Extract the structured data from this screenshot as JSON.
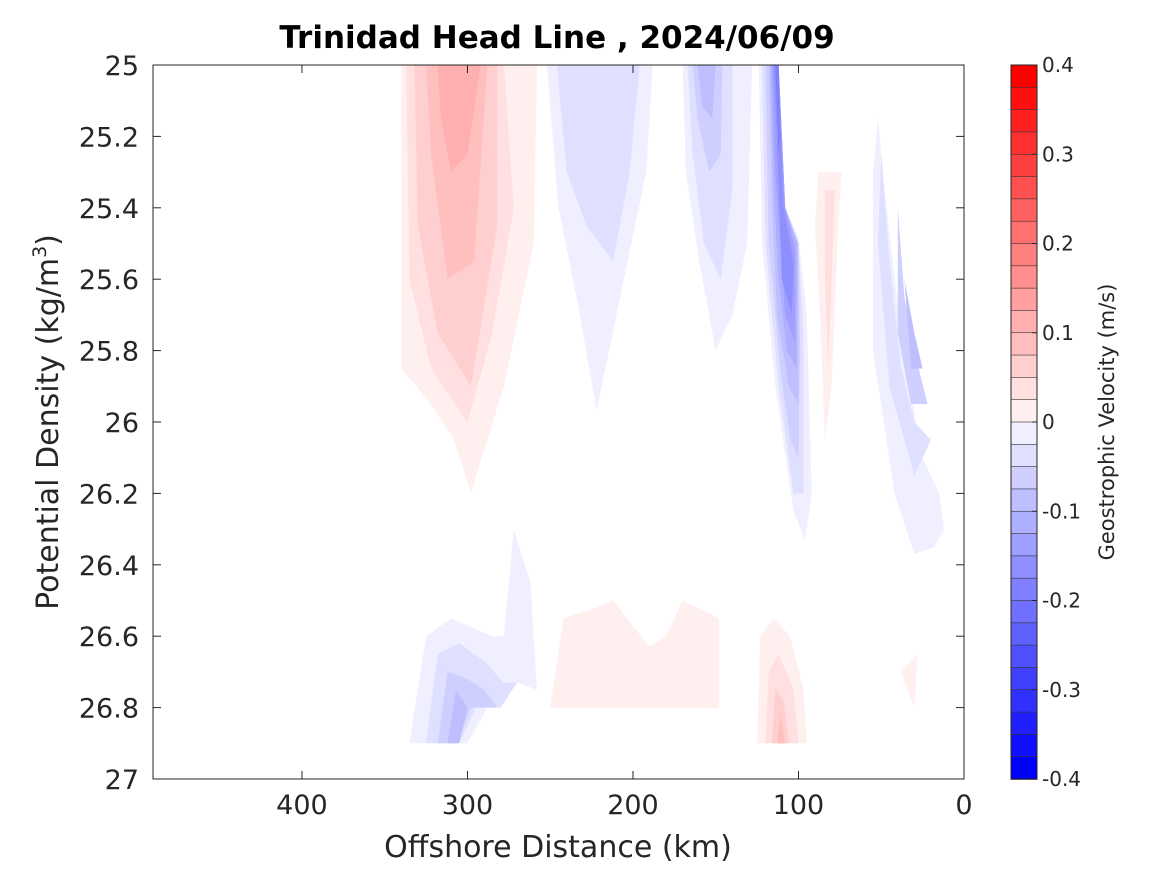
{
  "chart_data": {
    "type": "heatmap",
    "subtype": "filled-contour",
    "title": "Trinidad Head Line , 2024/06/09",
    "xlabel": "Offshore Distance (km)",
    "ylabel_main": "Potential Density (kg/m",
    "ylabel_sup": "3",
    "ylabel_close": ")",
    "xlim": [
      490,
      0
    ],
    "x_reversed": true,
    "ylim": [
      25,
      27
    ],
    "y_reversed": true,
    "x_ticks": [
      400,
      300,
      200,
      100,
      0
    ],
    "y_ticks": [
      25,
      25.2,
      25.4,
      25.6,
      25.8,
      26,
      26.2,
      26.4,
      26.6,
      26.8,
      27
    ],
    "y_tick_labels": [
      "25",
      "25.2",
      "25.4",
      "25.6",
      "25.8",
      "26",
      "26.2",
      "26.4",
      "26.6",
      "26.8",
      "27"
    ],
    "grid": false,
    "colorbar": {
      "label": "Geostrophic Velocity (m/s)",
      "range": [
        -0.4,
        0.4
      ],
      "step": 0.025,
      "ticks": [
        0.4,
        0.3,
        0.2,
        0.1,
        0,
        -0.1,
        -0.2,
        -0.3,
        -0.4
      ],
      "tick_labels": [
        "0.4",
        "0.3",
        "0.2",
        "0.1",
        "0",
        "-0.1",
        "-0.2",
        "-0.3",
        "-0.4"
      ],
      "colormap": "blue-white-red",
      "color_positive": "#ff0000",
      "color_negative": "#0000ff",
      "color_zero": "#ffffff"
    },
    "contour_regions": [
      {
        "name": "offshore-positive-core",
        "velocity": 0.025,
        "points": [
          [
            340,
            25
          ],
          [
            258,
            25
          ],
          [
            260,
            25.5
          ],
          [
            278,
            25.9
          ],
          [
            298,
            26.2
          ],
          [
            308,
            26.05
          ],
          [
            322,
            25.95
          ],
          [
            340,
            25.85
          ]
        ]
      },
      {
        "name": "offshore-positive-core",
        "velocity": 0.05,
        "points": [
          [
            337,
            25
          ],
          [
            278,
            25
          ],
          [
            272,
            25.4
          ],
          [
            285,
            25.75
          ],
          [
            300,
            26
          ],
          [
            322,
            25.85
          ],
          [
            335,
            25.6
          ]
        ]
      },
      {
        "name": "offshore-positive-core",
        "velocity": 0.075,
        "points": [
          [
            332,
            25
          ],
          [
            282,
            25
          ],
          [
            282,
            25.45
          ],
          [
            298,
            25.9
          ],
          [
            318,
            25.75
          ],
          [
            330,
            25.45
          ]
        ]
      },
      {
        "name": "offshore-positive-core",
        "velocity": 0.1,
        "points": [
          [
            325,
            25
          ],
          [
            288,
            25
          ],
          [
            296,
            25.55
          ],
          [
            312,
            25.6
          ],
          [
            322,
            25.25
          ]
        ]
      },
      {
        "name": "offshore-positive-core",
        "velocity": 0.125,
        "points": [
          [
            318,
            25
          ],
          [
            292,
            25
          ],
          [
            300,
            25.25
          ],
          [
            310,
            25.3
          ],
          [
            316,
            25.15
          ]
        ]
      },
      {
        "name": "offshore-negative-band",
        "velocity": -0.025,
        "points": [
          [
            252,
            25
          ],
          [
            188,
            25
          ],
          [
            192,
            25.3
          ],
          [
            210,
            25.7
          ],
          [
            222,
            25.97
          ],
          [
            232,
            25.7
          ],
          [
            245,
            25.4
          ]
        ]
      },
      {
        "name": "offshore-negative-band",
        "velocity": -0.05,
        "points": [
          [
            246,
            25
          ],
          [
            196,
            25
          ],
          [
            202,
            25.3
          ],
          [
            212,
            25.55
          ],
          [
            228,
            25.45
          ],
          [
            240,
            25.3
          ]
        ]
      },
      {
        "name": "mid-negative-band",
        "velocity": -0.025,
        "points": [
          [
            170,
            25
          ],
          [
            128,
            25
          ],
          [
            131,
            25.5
          ],
          [
            140,
            25.7
          ],
          [
            150,
            25.8
          ],
          [
            160,
            25.55
          ],
          [
            168,
            25.3
          ]
        ]
      },
      {
        "name": "mid-negative-band",
        "velocity": -0.05,
        "points": [
          [
            167,
            25
          ],
          [
            140,
            25
          ],
          [
            140,
            25.35
          ],
          [
            147,
            25.6
          ],
          [
            157,
            25.5
          ],
          [
            164,
            25.25
          ]
        ]
      },
      {
        "name": "mid-negative-band",
        "velocity": -0.075,
        "points": [
          [
            164,
            25
          ],
          [
            146,
            25
          ],
          [
            147,
            25.25
          ],
          [
            154,
            25.3
          ],
          [
            161,
            25.15
          ]
        ]
      },
      {
        "name": "mid-negative-band",
        "velocity": -0.1,
        "points": [
          [
            161,
            25
          ],
          [
            150,
            25
          ],
          [
            152,
            25.15
          ],
          [
            158,
            25.12
          ]
        ]
      },
      {
        "name": "shelf-jet",
        "velocity": -0.025,
        "points": [
          [
            124,
            25
          ],
          [
            112,
            25
          ],
          [
            108,
            25.4
          ],
          [
            100,
            25.48
          ],
          [
            95,
            25.7
          ],
          [
            92,
            26.2
          ],
          [
            96,
            26.33
          ],
          [
            103,
            26.25
          ],
          [
            114,
            25.9
          ],
          [
            122,
            25.5
          ]
        ]
      },
      {
        "name": "shelf-jet",
        "velocity": -0.05,
        "points": [
          [
            122,
            25
          ],
          [
            112,
            25
          ],
          [
            108,
            25.4
          ],
          [
            100,
            25.5
          ],
          [
            97,
            25.75
          ],
          [
            97,
            26.2
          ],
          [
            103,
            26.2
          ],
          [
            112,
            25.9
          ],
          [
            120,
            25.5
          ]
        ]
      },
      {
        "name": "shelf-jet",
        "velocity": -0.075,
        "points": [
          [
            120,
            25
          ],
          [
            112,
            25
          ],
          [
            108,
            25.4
          ],
          [
            100,
            25.5
          ],
          [
            99,
            25.8
          ],
          [
            100,
            26.1
          ],
          [
            105,
            26.05
          ],
          [
            111,
            25.85
          ],
          [
            118,
            25.5
          ]
        ]
      },
      {
        "name": "shelf-jet",
        "velocity": -0.1,
        "points": [
          [
            118,
            25
          ],
          [
            112,
            25
          ],
          [
            108,
            25.4
          ],
          [
            100,
            25.5
          ],
          [
            100,
            25.95
          ],
          [
            106,
            25.9
          ],
          [
            113,
            25.7
          ],
          [
            116,
            25.4
          ]
        ]
      },
      {
        "name": "shelf-jet",
        "velocity": -0.125,
        "points": [
          [
            117,
            25
          ],
          [
            112,
            25
          ],
          [
            108,
            25.4
          ],
          [
            101,
            25.5
          ],
          [
            101,
            25.85
          ],
          [
            107,
            25.8
          ],
          [
            112,
            25.6
          ],
          [
            115,
            25.35
          ]
        ]
      },
      {
        "name": "shelf-jet",
        "velocity": -0.15,
        "points": [
          [
            116,
            25
          ],
          [
            112,
            25
          ],
          [
            108,
            25.4
          ],
          [
            102,
            25.52
          ],
          [
            102,
            25.78
          ],
          [
            108,
            25.7
          ],
          [
            114,
            25.3
          ]
        ]
      },
      {
        "name": "shelf-jet",
        "velocity": -0.175,
        "points": [
          [
            115,
            25
          ],
          [
            112,
            25
          ],
          [
            109,
            25.4
          ],
          [
            103,
            25.55
          ],
          [
            104,
            25.7
          ],
          [
            110,
            25.6
          ],
          [
            113,
            25.2
          ]
        ]
      },
      {
        "name": "shelf-jet",
        "velocity": -0.2,
        "points": [
          [
            114,
            25
          ],
          [
            112,
            25
          ],
          [
            111,
            25.2
          ],
          [
            112,
            25.25
          ]
        ]
      },
      {
        "name": "nearshore-positive",
        "velocity": 0.025,
        "points": [
          [
            88,
            25.3
          ],
          [
            74,
            25.3
          ],
          [
            76,
            25.45
          ],
          [
            80,
            25.9
          ],
          [
            84,
            26.05
          ],
          [
            87,
            25.7
          ],
          [
            90,
            25.45
          ]
        ]
      },
      {
        "name": "nearshore-positive",
        "velocity": 0.05,
        "points": [
          [
            84,
            25.35
          ],
          [
            78,
            25.35
          ],
          [
            80,
            25.6
          ],
          [
            82,
            25.85
          ],
          [
            84,
            25.6
          ]
        ]
      },
      {
        "name": "coastal-negative",
        "velocity": -0.025,
        "points": [
          [
            52,
            25.15
          ],
          [
            48,
            25.35
          ],
          [
            42,
            25.6
          ],
          [
            35,
            25.85
          ],
          [
            25,
            26.1
          ],
          [
            15,
            26.2
          ],
          [
            12,
            26.3
          ],
          [
            18,
            26.35
          ],
          [
            30,
            26.37
          ],
          [
            42,
            26.2
          ],
          [
            55,
            25.8
          ],
          [
            55,
            25.3
          ]
        ]
      },
      {
        "name": "coastal-negative",
        "velocity": -0.05,
        "points": [
          [
            50,
            25.25
          ],
          [
            45,
            25.55
          ],
          [
            38,
            25.85
          ],
          [
            30,
            26
          ],
          [
            20,
            26.05
          ],
          [
            30,
            26.15
          ],
          [
            45,
            25.9
          ],
          [
            52,
            25.5
          ]
        ]
      },
      {
        "name": "coastal-negative",
        "velocity": -0.075,
        "points": [
          [
            40,
            25.4
          ],
          [
            36,
            25.65
          ],
          [
            30,
            25.8
          ],
          [
            22,
            25.95
          ],
          [
            32,
            25.95
          ],
          [
            40,
            25.75
          ]
        ]
      },
      {
        "name": "coastal-negative",
        "velocity": -0.1,
        "points": [
          [
            36,
            25.6
          ],
          [
            30,
            25.75
          ],
          [
            25,
            25.85
          ],
          [
            32,
            25.85
          ]
        ]
      },
      {
        "name": "deep-negative",
        "velocity": -0.025,
        "points": [
          [
            335,
            26.9
          ],
          [
            325,
            26.6
          ],
          [
            310,
            26.55
          ],
          [
            295,
            26.58
          ],
          [
            285,
            26.6
          ],
          [
            278,
            26.6
          ],
          [
            272,
            26.3
          ],
          [
            262,
            26.45
          ],
          [
            258,
            26.75
          ],
          [
            270,
            26.73
          ],
          [
            288,
            26.8
          ],
          [
            300,
            26.9
          ]
        ]
      },
      {
        "name": "deep-negative",
        "velocity": -0.05,
        "points": [
          [
            325,
            26.9
          ],
          [
            318,
            26.65
          ],
          [
            305,
            26.62
          ],
          [
            290,
            26.67
          ],
          [
            278,
            26.73
          ],
          [
            270,
            26.73
          ],
          [
            280,
            26.8
          ],
          [
            295,
            26.8
          ],
          [
            305,
            26.9
          ]
        ]
      },
      {
        "name": "deep-negative",
        "velocity": -0.075,
        "points": [
          [
            318,
            26.9
          ],
          [
            312,
            26.7
          ],
          [
            300,
            26.72
          ],
          [
            290,
            26.75
          ],
          [
            282,
            26.8
          ],
          [
            298,
            26.8
          ],
          [
            306,
            26.9
          ]
        ]
      },
      {
        "name": "deep-negative",
        "velocity": -0.1,
        "points": [
          [
            312,
            26.9
          ],
          [
            307,
            26.75
          ],
          [
            300,
            26.8
          ],
          [
            305,
            26.9
          ]
        ]
      },
      {
        "name": "deep-positive",
        "velocity": 0.025,
        "points": [
          [
            250,
            26.8
          ],
          [
            242,
            26.55
          ],
          [
            222,
            26.52
          ],
          [
            212,
            26.5
          ],
          [
            190,
            26.63
          ],
          [
            180,
            26.6
          ],
          [
            170,
            26.5
          ],
          [
            148,
            26.55
          ],
          [
            148,
            26.8
          ]
        ]
      },
      {
        "name": "shelf-positive",
        "velocity": 0.025,
        "points": [
          [
            125,
            26.9
          ],
          [
            123,
            26.6
          ],
          [
            115,
            26.55
          ],
          [
            105,
            26.6
          ],
          [
            97,
            26.75
          ],
          [
            95,
            26.9
          ]
        ]
      },
      {
        "name": "shelf-positive",
        "velocity": 0.05,
        "points": [
          [
            120,
            26.9
          ],
          [
            118,
            26.7
          ],
          [
            112,
            26.65
          ],
          [
            103,
            26.75
          ],
          [
            100,
            26.9
          ]
        ]
      },
      {
        "name": "shelf-positive",
        "velocity": 0.075,
        "points": [
          [
            116,
            26.9
          ],
          [
            114,
            26.75
          ],
          [
            109,
            26.78
          ],
          [
            106,
            26.9
          ]
        ]
      },
      {
        "name": "shelf-positive",
        "velocity": 0.1,
        "points": [
          [
            113,
            26.9
          ],
          [
            111,
            26.82
          ],
          [
            108,
            26.9
          ]
        ]
      },
      {
        "name": "coastal-positive",
        "velocity": 0.025,
        "points": [
          [
            38,
            26.7
          ],
          [
            28,
            26.65
          ],
          [
            30,
            26.8
          ]
        ]
      }
    ]
  }
}
